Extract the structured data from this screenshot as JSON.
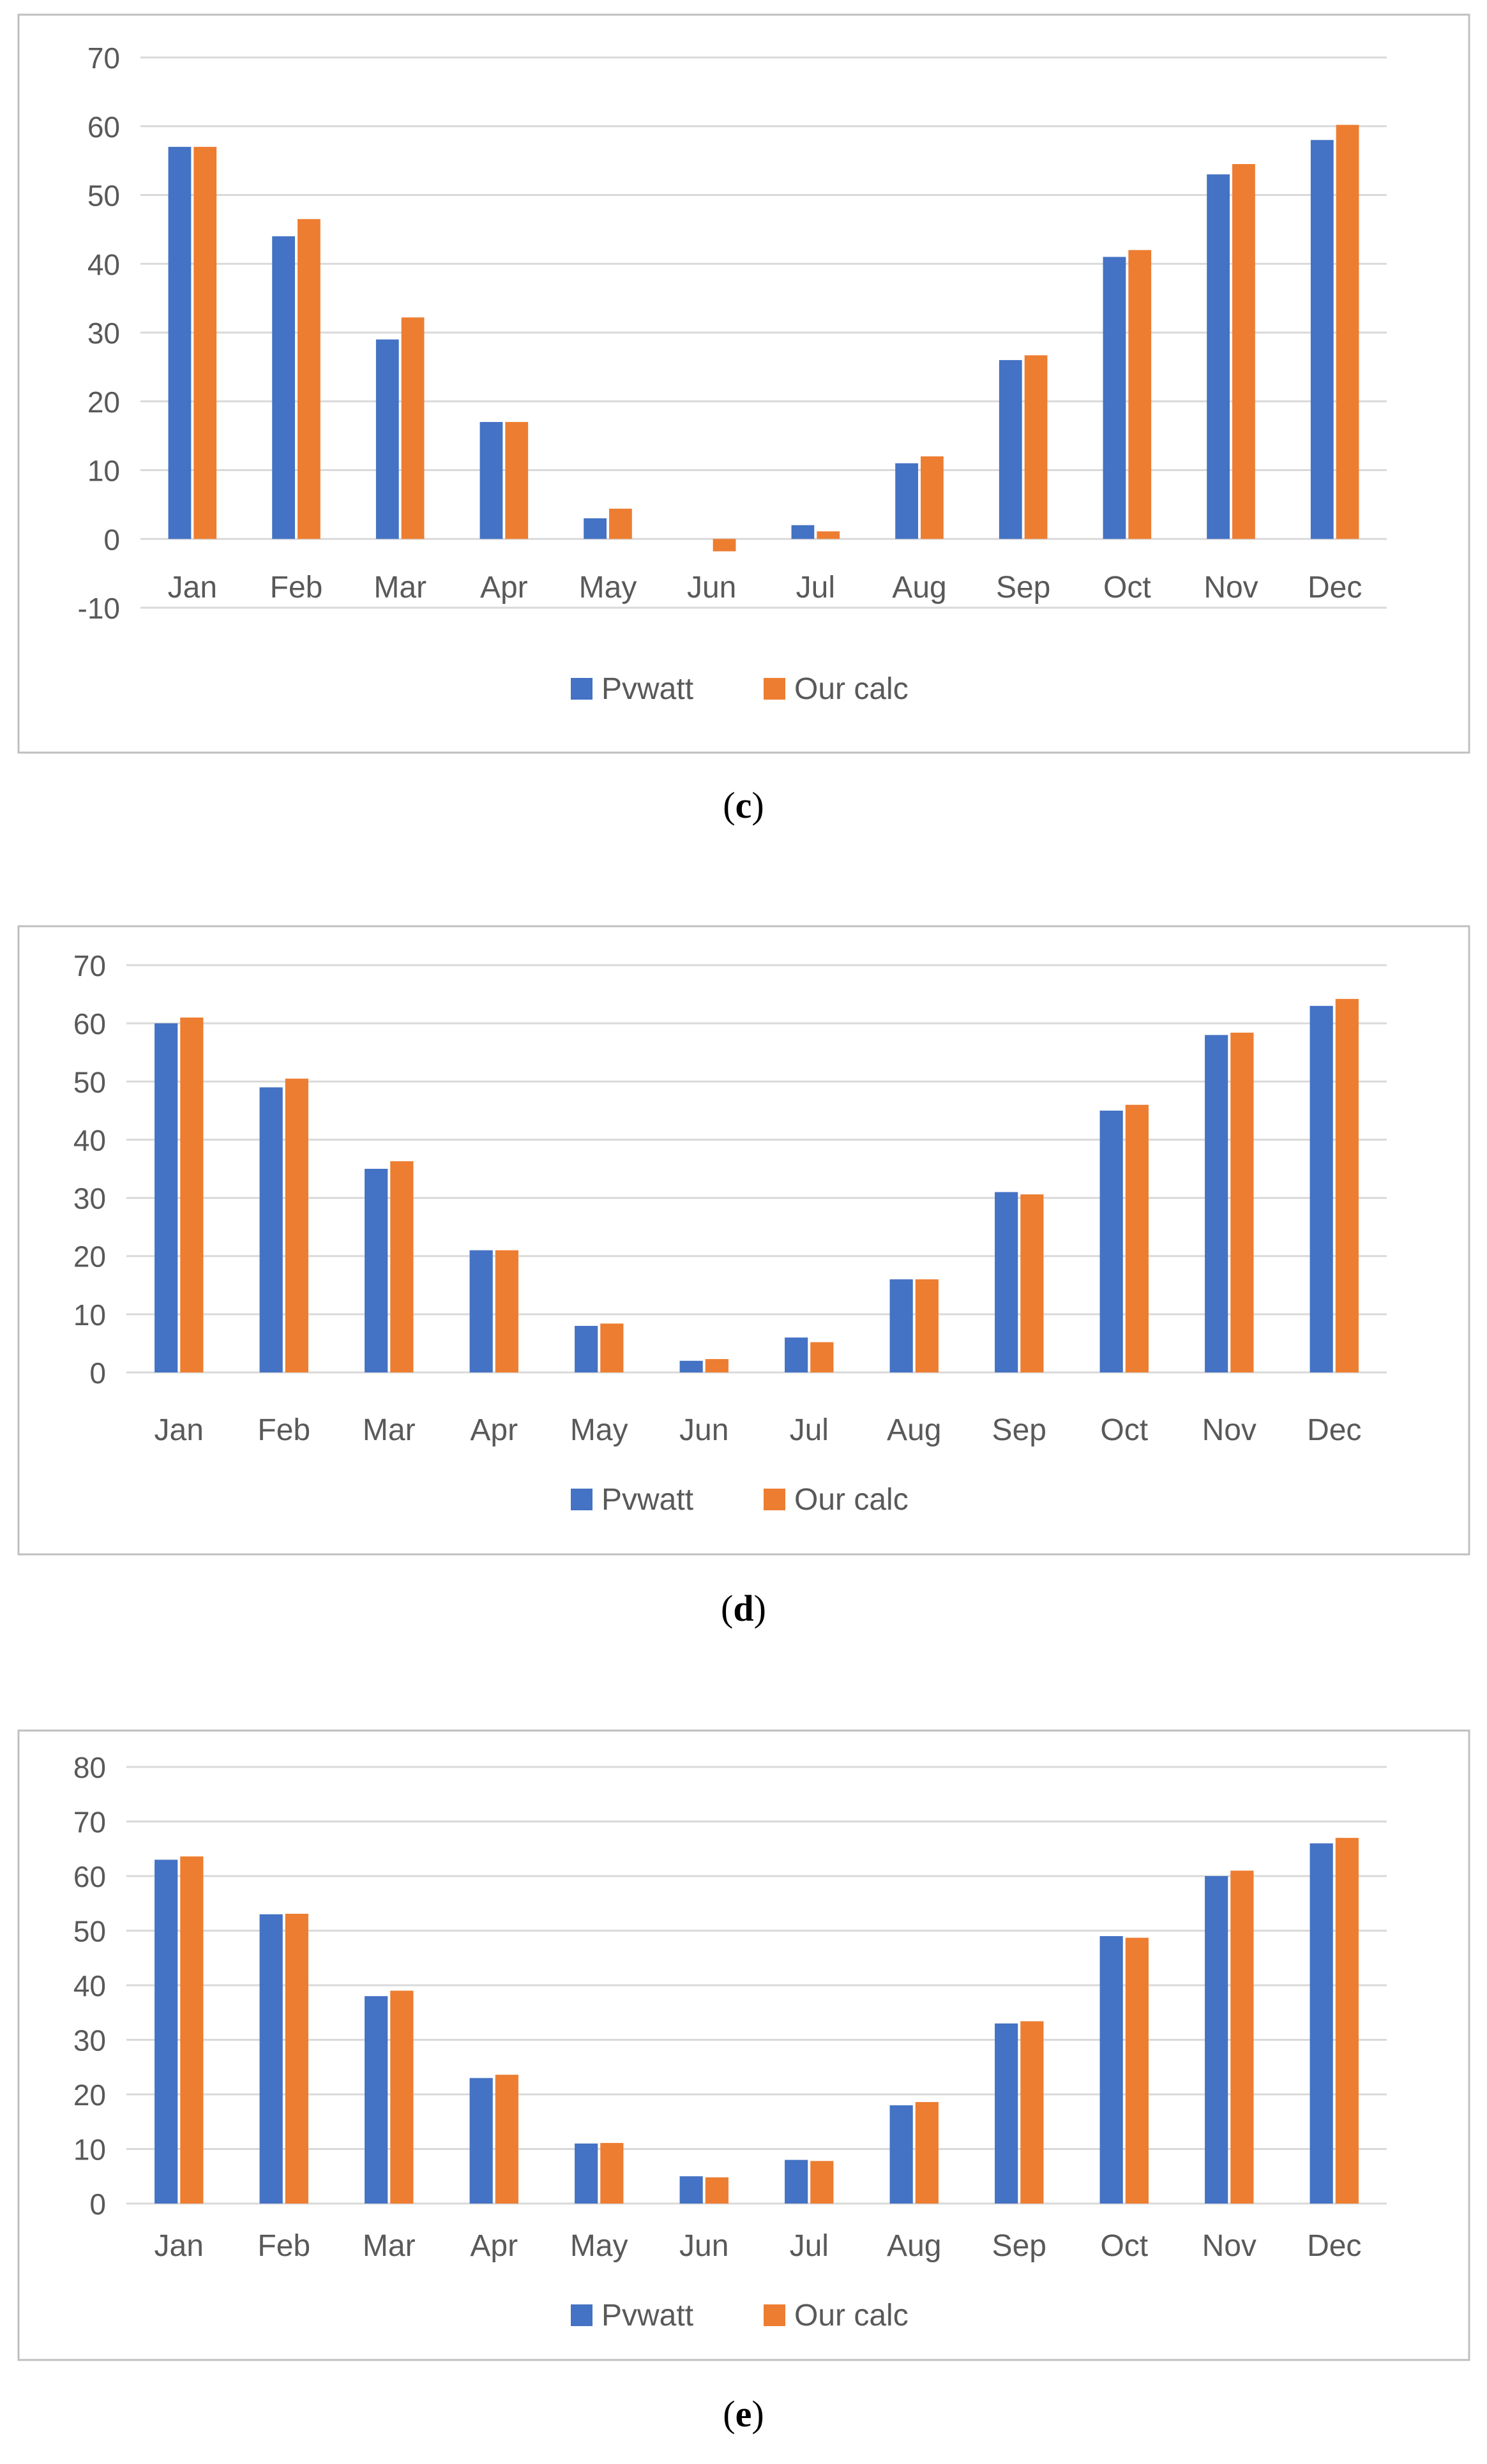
{
  "colors": {
    "pvwatt": "#4472C4",
    "our_calc": "#ED7D31",
    "grid": "#D9D9D9",
    "frame": "#BFBFBF",
    "text": "#595959"
  },
  "chart_data": [
    {
      "type": "bar",
      "caption": "c",
      "categories": [
        "Jan",
        "Feb",
        "Mar",
        "Apr",
        "May",
        "Jun",
        "Jul",
        "Aug",
        "Sep",
        "Oct",
        "Nov",
        "Dec"
      ],
      "series": [
        {
          "name": "Pvwatt",
          "values": [
            57,
            44,
            29,
            17,
            3,
            0,
            2,
            11,
            26,
            41,
            53,
            58
          ]
        },
        {
          "name": "Our calc",
          "values": [
            57,
            46.5,
            32.2,
            17,
            4.4,
            -1.8,
            1.1,
            12,
            26.7,
            42,
            54.5,
            60.2
          ]
        }
      ],
      "yticks": [
        "70",
        "60",
        "50",
        "40",
        "30",
        "20",
        "10",
        "0",
        "-10"
      ],
      "ylim": [
        -10,
        70
      ],
      "legend": "bottom",
      "title": "",
      "xlabel": "",
      "ylabel": ""
    },
    {
      "type": "bar",
      "caption": "d",
      "categories": [
        "Jan",
        "Feb",
        "Mar",
        "Apr",
        "May",
        "Jun",
        "Jul",
        "Aug",
        "Sep",
        "Oct",
        "Nov",
        "Dec"
      ],
      "series": [
        {
          "name": "Pvwatt",
          "values": [
            60,
            49,
            35,
            21,
            8,
            2,
            6,
            16,
            31,
            45,
            58,
            63
          ]
        },
        {
          "name": "Our calc",
          "values": [
            61,
            50.5,
            36.3,
            21,
            8.4,
            2.3,
            5.2,
            16,
            30.6,
            46,
            58.4,
            64.2
          ]
        }
      ],
      "yticks": [
        "70",
        "60",
        "50",
        "40",
        "30",
        "20",
        "10",
        "0"
      ],
      "ylim": [
        0,
        70
      ],
      "legend": "bottom",
      "title": "",
      "xlabel": "",
      "ylabel": ""
    },
    {
      "type": "bar",
      "caption": "e",
      "categories": [
        "Jan",
        "Feb",
        "Mar",
        "Apr",
        "May",
        "Jun",
        "Jul",
        "Aug",
        "Sep",
        "Oct",
        "Nov",
        "Dec"
      ],
      "series": [
        {
          "name": "Pvwatt",
          "values": [
            63,
            53,
            38,
            23,
            11,
            5,
            8,
            18,
            33,
            49,
            60,
            66
          ]
        },
        {
          "name": "Our calc",
          "values": [
            63.6,
            53.1,
            39,
            23.6,
            11.1,
            4.8,
            7.8,
            18.6,
            33.4,
            48.7,
            61,
            67
          ]
        }
      ],
      "yticks": [
        "80",
        "70",
        "60",
        "50",
        "40",
        "30",
        "20",
        "10",
        "0"
      ],
      "ylim": [
        0,
        80
      ],
      "legend": "bottom",
      "title": "",
      "xlabel": "",
      "ylabel": ""
    }
  ]
}
